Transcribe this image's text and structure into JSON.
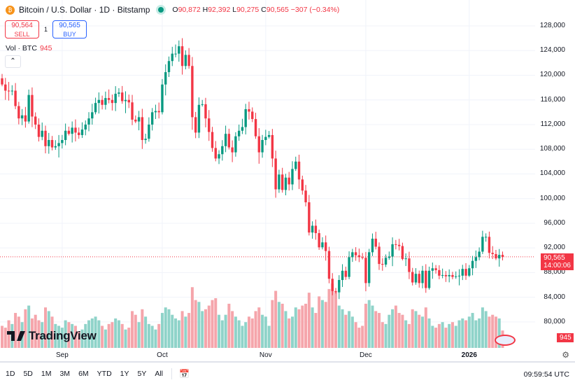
{
  "header": {
    "title": "Bitcoin / U.S. Dollar · 1D · Bitstamp",
    "open_label": "O",
    "open": "90,872",
    "high_label": "H",
    "high": "92,392",
    "low_label": "L",
    "low": "90,275",
    "close_label": "C",
    "close": "90,565",
    "change": "−307 (−0.34%)"
  },
  "trade": {
    "sell_price": "90,564",
    "sell_label": "SELL",
    "spread": "1",
    "buy_price": "90,565",
    "buy_label": "BUY"
  },
  "volume_legend": {
    "label": "Vol · BTC",
    "value": "945"
  },
  "price_tag": {
    "price": "90,565",
    "countdown": "14:00:06"
  },
  "volume_tag": "945",
  "brand": "TradingView",
  "ranges": [
    "1D",
    "5D",
    "1M",
    "3M",
    "6M",
    "YTD",
    "1Y",
    "5Y",
    "All"
  ],
  "clock": "09:59:54 UTC",
  "colors": {
    "up": "#089981",
    "down": "#f23645",
    "up_vol": "#8fd3c9",
    "down_vol": "#f5a5ab"
  },
  "chart_data": {
    "type": "candlestick",
    "title": "Bitcoin / U.S. Dollar · 1D · Bitstamp",
    "start_date": "2025-08-14",
    "interval": "1D",
    "ylim": [
      78000,
      130000
    ],
    "y_ticks": [
      128000,
      124000,
      120000,
      116000,
      112000,
      108000,
      104000,
      100000,
      96000,
      92000,
      88000,
      84000,
      80000
    ],
    "y_tick_labels": [
      "128,000",
      "124,000",
      "120,000",
      "116,000",
      "112,000",
      "108,000",
      "104,000",
      "100,000",
      "96,000",
      "92,000",
      "88,000",
      "84,000",
      "80,000"
    ],
    "x_ticks": [
      {
        "label": "Sep",
        "index": 18
      },
      {
        "label": "Oct",
        "index": 48
      },
      {
        "label": "Nov",
        "index": 79
      },
      {
        "label": "Dec",
        "index": 109
      },
      {
        "label": "2026",
        "index": 140
      }
    ],
    "first_open": 119500,
    "close": [
      118.5,
      117.5,
      117.4,
      117.5,
      115,
      113,
      113.5,
      112.5,
      116.8,
      113.3,
      112,
      110,
      111,
      108.5,
      109.5,
      108.3,
      108.5,
      109,
      109.5,
      111,
      110.5,
      111.5,
      110.7,
      110.3,
      111.2,
      112,
      113,
      114,
      115.5,
      116,
      115.2,
      116.3,
      116,
      115.5,
      117,
      117.2,
      115.8,
      116,
      115.6,
      112.8,
      112.5,
      113.2,
      109.5,
      109.7,
      112,
      114,
      114.2,
      114,
      118.5,
      120.5,
      122.3,
      123.5,
      123.5,
      124.7,
      121.5,
      123.3,
      121.5,
      113.2,
      110.7,
      115.2,
      115.3,
      113,
      110.8,
      108.2,
      106.5,
      107.2,
      108.5,
      110.5,
      108.3,
      107.5,
      110.1,
      111,
      111.6,
      114.5,
      114.1,
      112.9,
      110.1,
      107.5,
      109.5,
      110,
      110.3,
      106.5,
      101.5,
      103.9,
      101.4,
      103.4,
      102.3,
      104.8,
      106,
      103.1,
      101.3,
      99.4,
      94.5,
      95.6,
      94.4,
      92.1,
      92.9,
      91.5,
      87,
      85,
      84.8,
      86.8,
      88.3,
      87.3,
      90.5,
      91.3,
      90.8,
      90.5,
      90.4,
      86.3,
      91.3,
      93.5,
      92.2,
      89.4,
      89.3,
      90.4,
      90.6,
      92.6,
      92.5,
      92.3,
      90.2,
      90.3,
      88.1,
      86.4,
      87.8,
      86.3,
      88.3,
      85.5,
      88.3,
      88.7,
      88.4,
      87.5,
      87.6,
      87.4,
      87.6,
      87.3,
      87.4,
      87.5,
      88.6,
      87.5,
      88.7,
      89.9,
      90.5,
      91.4,
      93.8,
      93.8,
      91.2,
      91,
      90.3,
      90.872,
      90.565
    ],
    "close_unit": "thousand USD",
    "volume": [
      1200,
      1100,
      1500,
      1300,
      1900,
      1700,
      1400,
      2100,
      2300,
      1600,
      1800,
      1500,
      1400,
      2200,
      2000,
      1700,
      1300,
      1200,
      1100,
      1500,
      1400,
      1300,
      1200,
      900,
      1000,
      1300,
      1500,
      1600,
      1700,
      1500,
      1200,
      1000,
      1300,
      1400,
      1600,
      1500,
      1300,
      1000,
      1100,
      2000,
      1800,
      1400,
      2100,
      1700,
      1300,
      1200,
      1000,
      1300,
      1900,
      2200,
      2100,
      1800,
      1600,
      1500,
      2000,
      1700,
      1900,
      3300,
      2600,
      2500,
      2000,
      2100,
      2300,
      2600,
      2700,
      1800,
      1500,
      1800,
      2400,
      2000,
      1700,
      1500,
      1200,
      1400,
      1700,
      1600,
      2000,
      2200,
      1800,
      1700,
      1200,
      2600,
      3100,
      2500,
      2400,
      2000,
      1600,
      1700,
      2200,
      2100,
      2300,
      2400,
      3000,
      2200,
      1900,
      2800,
      2600,
      2500,
      3200,
      3500,
      3000,
      2300,
      2100,
      1800,
      2000,
      1700,
      1400,
      1100,
      1200,
      2400,
      2600,
      2300,
      2000,
      1900,
      1400,
      1300,
      1800,
      2100,
      2300,
      1900,
      1800,
      1500,
      1300,
      2100,
      2000,
      1800,
      1700,
      2200,
      1600,
      1200,
      1100,
      1300,
      1400,
      1100,
      1300,
      1400,
      1200,
      1500,
      1600,
      1500,
      1700,
      1900,
      1500,
      1600,
      2200,
      2000,
      1700,
      1800,
      1700,
      1600,
      945
    ],
    "last_price": 90565
  }
}
